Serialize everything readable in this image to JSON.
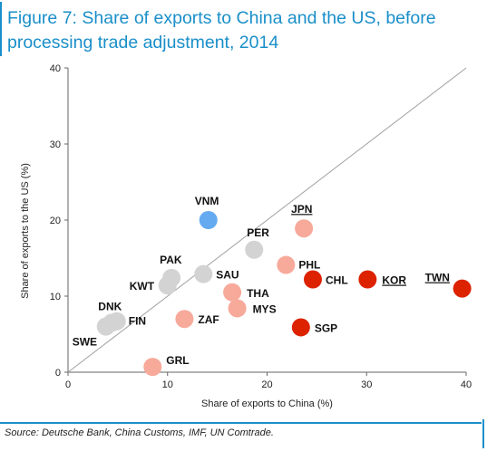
{
  "title_lines": [
    "Figure 7: Share of exports to China and the US, before",
    "processing trade adjustment, 2014"
  ],
  "source": "Source: Deutsche Bank, China Customs, IMF, UN Comtrade.",
  "colors": {
    "accent": "#1a8fc9",
    "grey": "#d3d3d3",
    "light_red": "#f7a99a",
    "red": "#dd2200",
    "blue": "#63aaf0"
  },
  "chart_data": {
    "type": "scatter",
    "title": "Figure 7: Share of exports to China and the US, before processing trade adjustment, 2014",
    "xlabel": "Share of exports to China (%)",
    "ylabel": "Share of exports to the US (%)",
    "xlim": [
      0,
      40
    ],
    "ylim": [
      0,
      40
    ],
    "xticks": [
      0,
      10,
      20,
      30,
      40
    ],
    "yticks": [
      0,
      10,
      20,
      30,
      40
    ],
    "diagonal": true,
    "grid": false,
    "points": [
      {
        "label": "SWE",
        "x": 3.8,
        "y": 6.0,
        "color": "grey",
        "underline": false
      },
      {
        "label": "FIN",
        "x": 4.9,
        "y": 6.7,
        "color": "grey",
        "underline": false
      },
      {
        "label": "DNK",
        "x": 4.4,
        "y": 6.5,
        "color": "grey",
        "underline": false
      },
      {
        "label": "KWT",
        "x": 10.0,
        "y": 11.4,
        "color": "grey",
        "underline": false
      },
      {
        "label": "PAK",
        "x": 10.4,
        "y": 12.4,
        "color": "grey",
        "underline": false
      },
      {
        "label": "SAU",
        "x": 13.6,
        "y": 12.9,
        "color": "grey",
        "underline": false
      },
      {
        "label": "PER",
        "x": 18.7,
        "y": 16.1,
        "color": "grey",
        "underline": false
      },
      {
        "label": "VNM",
        "x": 14.1,
        "y": 20.0,
        "color": "blue",
        "underline": false
      },
      {
        "label": "JPN",
        "x": 23.7,
        "y": 18.9,
        "color": "light_red",
        "underline": true
      },
      {
        "label": "PHL",
        "x": 21.9,
        "y": 14.1,
        "color": "light_red",
        "underline": false
      },
      {
        "label": "THA",
        "x": 16.5,
        "y": 10.5,
        "color": "light_red",
        "underline": false
      },
      {
        "label": "MYS",
        "x": 17.0,
        "y": 8.4,
        "color": "light_red",
        "underline": false
      },
      {
        "label": "ZAF",
        "x": 11.7,
        "y": 7.0,
        "color": "light_red",
        "underline": false
      },
      {
        "label": "GRL",
        "x": 8.5,
        "y": 0.7,
        "color": "light_red",
        "underline": false
      },
      {
        "label": "CHL",
        "x": 24.6,
        "y": 12.2,
        "color": "red",
        "underline": false
      },
      {
        "label": "KOR",
        "x": 30.1,
        "y": 12.2,
        "color": "red",
        "underline": true
      },
      {
        "label": "TWN",
        "x": 39.6,
        "y": 11.0,
        "color": "red",
        "underline": true
      },
      {
        "label": "SGP",
        "x": 23.4,
        "y": 5.9,
        "color": "red",
        "underline": false
      }
    ]
  }
}
